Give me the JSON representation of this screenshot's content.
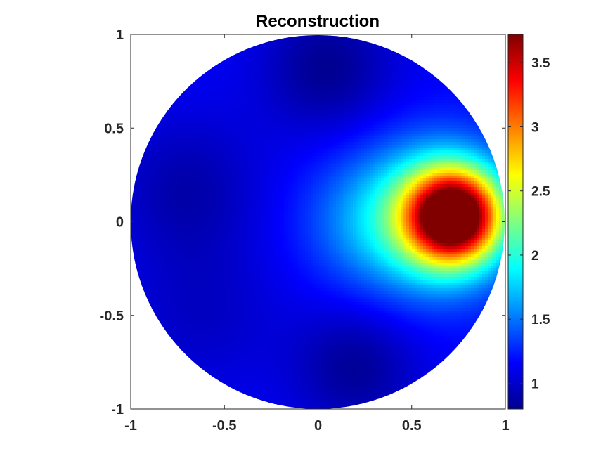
{
  "chart_data": {
    "type": "heatmap",
    "title": "Reconstruction",
    "xlabel": "",
    "ylabel": "",
    "xlim": [
      -1,
      1
    ],
    "ylim": [
      -1,
      1
    ],
    "domain_shape": "unit disk",
    "colormap": "jet",
    "xticks": [
      -1,
      -0.5,
      0,
      0.5,
      1
    ],
    "yticks": [
      -1,
      -0.5,
      0,
      0.5,
      1
    ],
    "xtick_labels": [
      "-1",
      "-0.5",
      "0",
      "0.5",
      "1"
    ],
    "ytick_labels": [
      "-1",
      "-0.5",
      "0",
      "0.5",
      "1"
    ],
    "colorbar": {
      "range": [
        0.8,
        3.72
      ],
      "ticks": [
        1,
        1.5,
        2,
        2.5,
        3,
        3.5
      ],
      "tick_labels": [
        "1",
        "1.5",
        "2",
        "2.5",
        "3",
        "3.5"
      ],
      "placement": "right"
    },
    "background_value": 1.15,
    "features": [
      {
        "kind": "peak",
        "center": [
          0.73,
          0.03
        ],
        "peak_value": 3.7,
        "spread": 0.17
      },
      {
        "kind": "halo",
        "center": [
          0.62,
          0.02
        ],
        "value": 0.95,
        "spread": 0.27
      },
      {
        "kind": "tail",
        "center": [
          0.25,
          0.0
        ],
        "value": 0.3,
        "spread": 0.25
      },
      {
        "kind": "low",
        "center": [
          0.05,
          0.82
        ],
        "value": -0.3,
        "spread": 0.25
      },
      {
        "kind": "low",
        "center": [
          0.2,
          -0.78
        ],
        "value": -0.28,
        "spread": 0.24
      },
      {
        "kind": "low",
        "center": [
          -0.7,
          0.18
        ],
        "value": -0.22,
        "spread": 0.28
      },
      {
        "kind": "low",
        "center": [
          -0.62,
          -0.5
        ],
        "value": -0.15,
        "spread": 0.3
      }
    ]
  }
}
